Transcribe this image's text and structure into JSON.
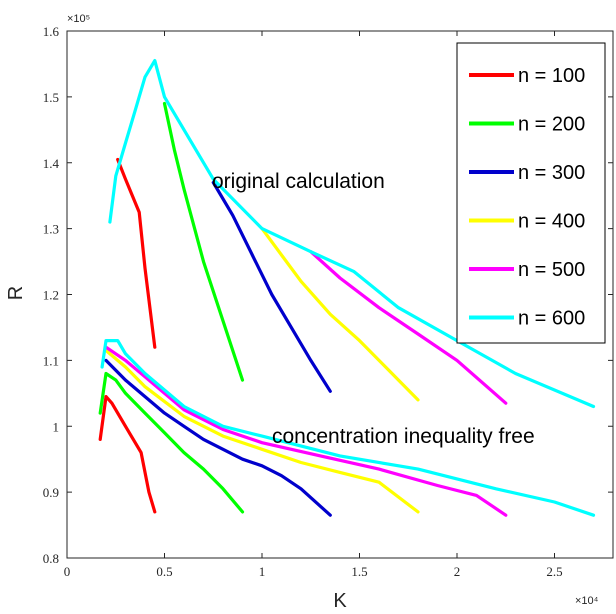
{
  "chart_data": {
    "type": "line",
    "xlabel": "K",
    "ylabel": "R",
    "x_multiplier": "×10⁴",
    "y_multiplier": "×10⁵",
    "xlim": [
      0,
      2.8
    ],
    "ylim": [
      0.8,
      1.6
    ],
    "x_ticks": [
      "0",
      "0.5",
      "1",
      "1.5",
      "2",
      "2.5"
    ],
    "x_tick_values": [
      0,
      0.5,
      1,
      1.5,
      2,
      2.5
    ],
    "y_ticks": [
      "0.8",
      "0.9",
      "1",
      "1.1",
      "1.2",
      "1.3",
      "1.4",
      "1.5",
      "1.6"
    ],
    "y_tick_values": [
      0.8,
      0.9,
      1.0,
      1.1,
      1.2,
      1.3,
      1.4,
      1.5,
      1.6
    ],
    "grid": false,
    "legend_position": "top-right",
    "annotations": [
      "original calculation",
      "concentration inequality free"
    ],
    "series": [
      {
        "name": "n = 100",
        "color": "#ff0000",
        "group": "original calculation",
        "points": [
          [
            0.26,
            1.405
          ],
          [
            0.3,
            1.375
          ],
          [
            0.37,
            1.325
          ],
          [
            0.4,
            1.24
          ],
          [
            0.45,
            1.12
          ]
        ]
      },
      {
        "name": "n = 200",
        "color": "#00ff00",
        "group": "original calculation",
        "points": [
          [
            0.5,
            1.49
          ],
          [
            0.55,
            1.42
          ],
          [
            0.6,
            1.36
          ],
          [
            0.7,
            1.25
          ],
          [
            0.8,
            1.16
          ],
          [
            0.9,
            1.07
          ]
        ]
      },
      {
        "name": "n = 300",
        "color": "#0000cc",
        "group": "original calculation",
        "points": [
          [
            0.75,
            1.37
          ],
          [
            0.85,
            1.32
          ],
          [
            0.95,
            1.26
          ],
          [
            1.05,
            1.2
          ],
          [
            1.15,
            1.15
          ],
          [
            1.25,
            1.1
          ],
          [
            1.35,
            1.053
          ]
        ]
      },
      {
        "name": "n = 400",
        "color": "#ffff00",
        "group": "original calculation",
        "points": [
          [
            1.0,
            1.3
          ],
          [
            1.1,
            1.26
          ],
          [
            1.2,
            1.22
          ],
          [
            1.35,
            1.17
          ],
          [
            1.5,
            1.13
          ],
          [
            1.65,
            1.085
          ],
          [
            1.8,
            1.04
          ]
        ]
      },
      {
        "name": "n = 500",
        "color": "#ff00ff",
        "group": "original calculation",
        "points": [
          [
            1.25,
            1.265
          ],
          [
            1.4,
            1.225
          ],
          [
            1.6,
            1.18
          ],
          [
            1.8,
            1.14
          ],
          [
            2.0,
            1.1
          ],
          [
            2.25,
            1.035
          ]
        ]
      },
      {
        "name": "n = 600",
        "color": "#00ffff",
        "group": "original calculation",
        "points": [
          [
            0.22,
            1.31
          ],
          [
            0.25,
            1.38
          ],
          [
            0.3,
            1.43
          ],
          [
            0.35,
            1.48
          ],
          [
            0.4,
            1.53
          ],
          [
            0.45,
            1.555
          ],
          [
            0.5,
            1.5
          ],
          [
            0.6,
            1.45
          ],
          [
            0.75,
            1.375
          ],
          [
            1.0,
            1.3
          ],
          [
            1.25,
            1.265
          ],
          [
            1.47,
            1.235
          ],
          [
            1.7,
            1.18
          ],
          [
            2.0,
            1.13
          ],
          [
            2.3,
            1.08
          ],
          [
            2.7,
            1.03
          ]
        ]
      },
      {
        "name": "n = 100",
        "color": "#ff0000",
        "group": "concentration inequality free",
        "points": [
          [
            0.17,
            0.98
          ],
          [
            0.2,
            1.045
          ],
          [
            0.23,
            1.035
          ],
          [
            0.26,
            1.02
          ],
          [
            0.3,
            1.0
          ],
          [
            0.34,
            0.98
          ],
          [
            0.38,
            0.96
          ],
          [
            0.42,
            0.9
          ],
          [
            0.45,
            0.87
          ]
        ]
      },
      {
        "name": "n = 200",
        "color": "#00ff00",
        "group": "concentration inequality free",
        "points": [
          [
            0.17,
            1.02
          ],
          [
            0.2,
            1.08
          ],
          [
            0.25,
            1.07
          ],
          [
            0.3,
            1.05
          ],
          [
            0.4,
            1.02
          ],
          [
            0.5,
            0.99
          ],
          [
            0.6,
            0.96
          ],
          [
            0.7,
            0.935
          ],
          [
            0.8,
            0.905
          ],
          [
            0.9,
            0.87
          ]
        ]
      },
      {
        "name": "n = 300",
        "color": "#0000cc",
        "group": "concentration inequality free",
        "points": [
          [
            0.2,
            1.1
          ],
          [
            0.3,
            1.07
          ],
          [
            0.4,
            1.045
          ],
          [
            0.5,
            1.02
          ],
          [
            0.6,
            1.0
          ],
          [
            0.7,
            0.98
          ],
          [
            0.8,
            0.965
          ],
          [
            0.9,
            0.95
          ],
          [
            1.0,
            0.94
          ],
          [
            1.1,
            0.925
          ],
          [
            1.2,
            0.905
          ],
          [
            1.35,
            0.865
          ]
        ]
      },
      {
        "name": "n = 400",
        "color": "#ffff00",
        "group": "concentration inequality free",
        "points": [
          [
            0.2,
            1.115
          ],
          [
            0.3,
            1.09
          ],
          [
            0.4,
            1.06
          ],
          [
            0.6,
            1.015
          ],
          [
            0.8,
            0.985
          ],
          [
            1.0,
            0.965
          ],
          [
            1.2,
            0.945
          ],
          [
            1.4,
            0.93
          ],
          [
            1.6,
            0.915
          ],
          [
            1.8,
            0.87
          ]
        ]
      },
      {
        "name": "n = 500",
        "color": "#ff00ff",
        "group": "concentration inequality free",
        "points": [
          [
            0.2,
            1.12
          ],
          [
            0.3,
            1.1
          ],
          [
            0.4,
            1.075
          ],
          [
            0.6,
            1.025
          ],
          [
            0.8,
            0.995
          ],
          [
            1.0,
            0.975
          ],
          [
            1.3,
            0.955
          ],
          [
            1.6,
            0.935
          ],
          [
            1.9,
            0.91
          ],
          [
            2.1,
            0.895
          ],
          [
            2.25,
            0.865
          ]
        ]
      },
      {
        "name": "n = 600",
        "color": "#00ffff",
        "group": "concentration inequality free",
        "points": [
          [
            0.18,
            1.09
          ],
          [
            0.2,
            1.13
          ],
          [
            0.26,
            1.13
          ],
          [
            0.3,
            1.11
          ],
          [
            0.4,
            1.08
          ],
          [
            0.6,
            1.03
          ],
          [
            0.8,
            1.0
          ],
          [
            1.0,
            0.985
          ],
          [
            1.4,
            0.955
          ],
          [
            1.8,
            0.935
          ],
          [
            2.2,
            0.905
          ],
          [
            2.5,
            0.885
          ],
          [
            2.7,
            0.865
          ]
        ]
      }
    ]
  }
}
